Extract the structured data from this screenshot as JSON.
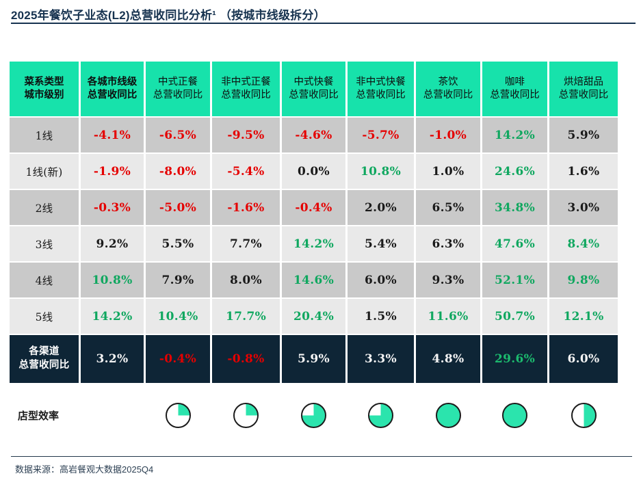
{
  "title": "2025年餐饮子业态(L2)总营收同比分析¹ （按城市线级拆分）",
  "footer": {
    "source": "数据来源：高岩餐观大数据2025Q4"
  },
  "colors": {
    "teal_header": "#17E2AB",
    "pie_fill": "#2BE4AD",
    "navy_row": "#0E2536",
    "title_navy": "#16324F",
    "row_dark_bg": "#C9C9C9",
    "row_light_bg": "#E9E9E9",
    "red": "#E50000",
    "green": "#0FA75F",
    "green_bright": "#1CBA6E",
    "black": "#1A1A1A",
    "white_text": "#F5F5F5"
  },
  "chart_data": {
    "type": "table",
    "title": "2025年餐饮子业态(L2)总营收同比分析（按城市线级拆分）",
    "column_headers": [
      "菜系类型\n城市级别",
      "各城市线级\n总营收同比",
      "中式正餐\n总营收同比",
      "非中式正餐\n总营收同比",
      "中式快餐\n总营收同比",
      "非中式快餐\n总营收同比",
      "茶饮\n总营收同比",
      "咖啡\n总营收同比",
      "烘焙甜品\n总营收同比"
    ],
    "rows": [
      {
        "label": "1线",
        "values": [
          "-4.1%",
          "-6.5%",
          "-9.5%",
          "-4.6%",
          "-5.7%",
          "-1.0%",
          "14.2%",
          "5.9%"
        ],
        "value_colors": [
          "r",
          "r",
          "r",
          "r",
          "r",
          "r",
          "g",
          "k"
        ]
      },
      {
        "label": "1线(新)",
        "values": [
          "-1.9%",
          "-8.0%",
          "-5.4%",
          "0.0%",
          "10.8%",
          "1.0%",
          "24.6%",
          "1.6%"
        ],
        "value_colors": [
          "r",
          "r",
          "r",
          "k",
          "g",
          "k",
          "g",
          "k"
        ]
      },
      {
        "label": "2线",
        "values": [
          "-0.3%",
          "-5.0%",
          "-1.6%",
          "-0.4%",
          "2.0%",
          "6.5%",
          "34.8%",
          "3.0%"
        ],
        "value_colors": [
          "r",
          "r",
          "r",
          "r",
          "k",
          "k",
          "g",
          "k"
        ]
      },
      {
        "label": "3线",
        "values": [
          "9.2%",
          "5.5%",
          "7.7%",
          "14.2%",
          "5.4%",
          "6.3%",
          "47.6%",
          "8.4%"
        ],
        "value_colors": [
          "k",
          "k",
          "k",
          "g",
          "k",
          "k",
          "g",
          "g"
        ]
      },
      {
        "label": "4线",
        "values": [
          "10.8%",
          "7.9%",
          "8.0%",
          "14.6%",
          "6.0%",
          "9.3%",
          "52.1%",
          "9.8%"
        ],
        "value_colors": [
          "g",
          "k",
          "k",
          "g",
          "k",
          "k",
          "g",
          "g"
        ]
      },
      {
        "label": "5线",
        "values": [
          "14.2%",
          "10.4%",
          "17.7%",
          "20.4%",
          "1.5%",
          "11.6%",
          "50.7%",
          "12.1%"
        ],
        "value_colors": [
          "g",
          "g",
          "g",
          "g",
          "k",
          "g",
          "g",
          "g"
        ]
      }
    ],
    "summary_row": {
      "label": "各渠道\n总营收同比",
      "values": [
        "3.2%",
        "-0.4%",
        "-0.8%",
        "5.9%",
        "3.3%",
        "4.8%",
        "29.6%",
        "6.0%"
      ],
      "value_colors": [
        "w",
        "r",
        "r",
        "w",
        "w",
        "w",
        "g2",
        "w"
      ]
    },
    "store_efficiency": {
      "label": "店型效率",
      "pie_percents": [
        25,
        25,
        75,
        75,
        100,
        100,
        50
      ]
    }
  }
}
